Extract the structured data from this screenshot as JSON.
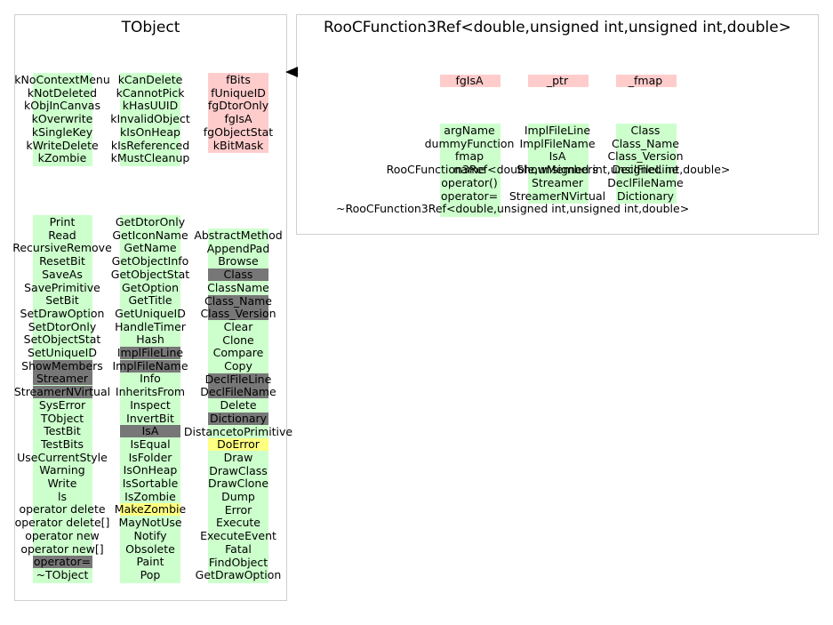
{
  "tobject": {
    "title": "TObject",
    "enums": [
      "kNoContextMenu",
      "kNotDeleted",
      "kObjInCanvas",
      "kOverwrite",
      "kSingleKey",
      "kWriteDelete",
      "kZombie"
    ],
    "enums2": [
      "kCanDelete",
      "kCannotPick",
      "kHasUUID",
      "kInvalidObject",
      "kIsOnHeap",
      "kIsReferenced",
      "kMustCleanup"
    ],
    "members": [
      "fBits",
      "fUniqueID",
      "fgDtorOnly",
      "fgIsA",
      "fgObjectStat",
      "kBitMask"
    ],
    "methods1": [
      "Print",
      "Read",
      "RecursiveRemove",
      "ResetBit",
      "SaveAs",
      "SavePrimitive",
      "SetBit",
      "SetDrawOption",
      "SetDtorOnly",
      "SetObjectStat",
      "SetUniqueID",
      "ShowMembers",
      "Streamer",
      "StreamerNVirtual",
      "SysError",
      "TObject",
      "TestBit",
      "TestBits",
      "UseCurrentStyle",
      "Warning",
      "Write",
      "ls",
      "operator delete",
      "operator delete[]",
      "operator new",
      "operator new[]",
      "operator=",
      "~TObject"
    ],
    "methods1_gray": [
      11,
      12,
      13,
      26
    ],
    "methods2": [
      "GetDtorOnly",
      "GetIconName",
      "GetName",
      "GetObjectInfo",
      "GetObjectStat",
      "GetOption",
      "GetTitle",
      "GetUniqueID",
      "HandleTimer",
      "Hash",
      "ImplFileLine",
      "ImplFileName",
      "Info",
      "InheritsFrom",
      "Inspect",
      "InvertBit",
      "IsA",
      "IsEqual",
      "IsFolder",
      "IsOnHeap",
      "IsSortable",
      "IsZombie",
      "MakeZombie",
      "MayNotUse",
      "Notify",
      "Obsolete",
      "Paint",
      "Pop"
    ],
    "methods2_gray": [
      10,
      11,
      16
    ],
    "methods2_yellow": [
      22
    ],
    "methods3": [
      "AbstractMethod",
      "AppendPad",
      "Browse",
      "Class",
      "ClassName",
      "Class_Name",
      "Class_Version",
      "Clear",
      "Clone",
      "Compare",
      "Copy",
      "DeclFileLine",
      "DeclFileName",
      "Delete",
      "Dictionary",
      "DistancetoPrimitive",
      "DoError",
      "Draw",
      "DrawClass",
      "DrawClone",
      "Dump",
      "Error",
      "Execute",
      "ExecuteEvent",
      "Fatal",
      "FindObject",
      "GetDrawOption"
    ],
    "methods3_gray": [
      3,
      5,
      6,
      11,
      12,
      14
    ],
    "methods3_yellow": [
      16
    ]
  },
  "roocf": {
    "title": "RooCFunction3Ref<double,unsigned int,unsigned int,double>",
    "members": [
      "fgIsA",
      "_ptr",
      "_fmap"
    ],
    "methods1": [
      "argName",
      "dummyFunction",
      "fmap",
      "name",
      "operator()",
      "operator=",
      "~RooCFunction3Ref<double,unsigned int,unsigned int,double>"
    ],
    "methods1_extra": "RooCFunction3Ref<double,unsigned int,unsigned int,double>",
    "methods2": [
      "ImplFileLine",
      "ImplFileName",
      "IsA",
      "ShowMembers",
      "Streamer",
      "StreamerNVirtual"
    ],
    "methods3": [
      "Class",
      "Class_Name",
      "Class_Version",
      "DeclFileLine",
      "DeclFileName",
      "Dictionary"
    ]
  }
}
